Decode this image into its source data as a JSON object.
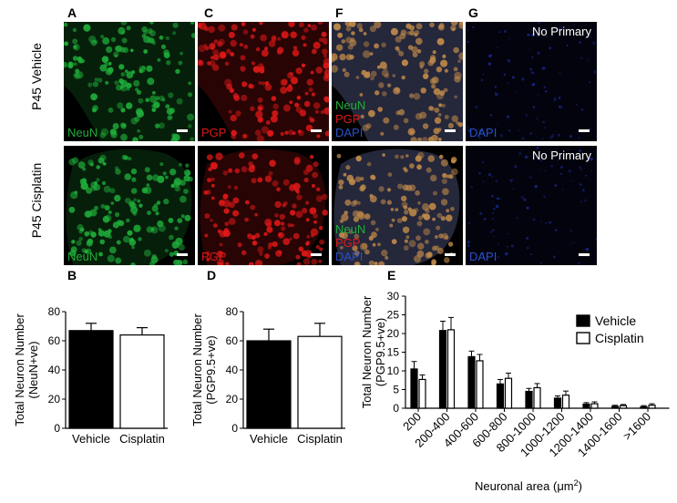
{
  "panels": {
    "A": "A",
    "C": "C",
    "F": "F",
    "G": "G",
    "B": "B",
    "D": "D",
    "E": "E"
  },
  "row_labels": {
    "top": "P45 Vehicle",
    "bottom": "P45 Cisplatin"
  },
  "image_labels": {
    "neun": "NeuN",
    "pgp": "PGP",
    "dapi": "DAPI",
    "no_primary": "No Primary"
  },
  "colors": {
    "neun": "#1fae3a",
    "pgp": "#e01818",
    "dapi": "#2a52c8",
    "vehicle_bar": "#000000",
    "cisplatin_bar": "#ffffff"
  },
  "chart_data": [
    {
      "id": "B",
      "type": "bar",
      "categories": [
        "Vehicle",
        "Cisplatin"
      ],
      "values": [
        67,
        64
      ],
      "errors": [
        5,
        5
      ],
      "ylabel": "Total Neuron Number (NeuN+ve)",
      "ylabel_lines": [
        "Total Neuron Number",
        "(NeuN+ve)"
      ],
      "ylim": [
        0,
        80
      ],
      "yticks": [
        0,
        20,
        40,
        60,
        80
      ],
      "bar_colors": [
        "#000000",
        "#ffffff"
      ]
    },
    {
      "id": "D",
      "type": "bar",
      "categories": [
        "Vehicle",
        "Cisplatin"
      ],
      "values": [
        60,
        63
      ],
      "errors": [
        8,
        9
      ],
      "ylabel": "Total Neuron Number (PGP9.5+ve)",
      "ylabel_lines": [
        "Total Neuron Number",
        "(PGP9.5+ve)"
      ],
      "ylim": [
        0,
        80
      ],
      "yticks": [
        0,
        20,
        40,
        60,
        80
      ],
      "bar_colors": [
        "#000000",
        "#ffffff"
      ]
    },
    {
      "id": "E",
      "type": "bar",
      "categories": [
        "200",
        "200-400",
        "400-600",
        "600-800",
        "800-1000",
        "1000-1200",
        "1200-1400",
        "1400-1600",
        ">1600"
      ],
      "series": [
        {
          "name": "Vehicle",
          "values": [
            10.5,
            20.8,
            13.8,
            6.5,
            4.5,
            2.7,
            1.1,
            0.5,
            0.4
          ],
          "errors": [
            2.0,
            2.5,
            1.5,
            1.2,
            0.8,
            0.6,
            0.4,
            0.3,
            0.3
          ]
        },
        {
          "name": "Cisplatin",
          "values": [
            7.7,
            21.0,
            12.7,
            8.0,
            5.5,
            3.5,
            1.2,
            0.7,
            0.8
          ],
          "errors": [
            1.2,
            3.3,
            1.7,
            1.4,
            1.1,
            1.1,
            0.5,
            0.3,
            0.4
          ]
        }
      ],
      "ylabel": "Total Neuron Number (PGP9.5+ve)",
      "ylabel_lines": [
        "Total Neuron Number",
        "(PGP9.5+ve)"
      ],
      "xlabel_prefix": "Neuronal area (",
      "xlabel_unit": "μm",
      "xlabel_exp": "2",
      "xlabel_suffix": ")",
      "ylim": [
        0,
        30
      ],
      "yticks": [
        0,
        5,
        10,
        15,
        20,
        25,
        30
      ],
      "legend": "top-right"
    }
  ]
}
